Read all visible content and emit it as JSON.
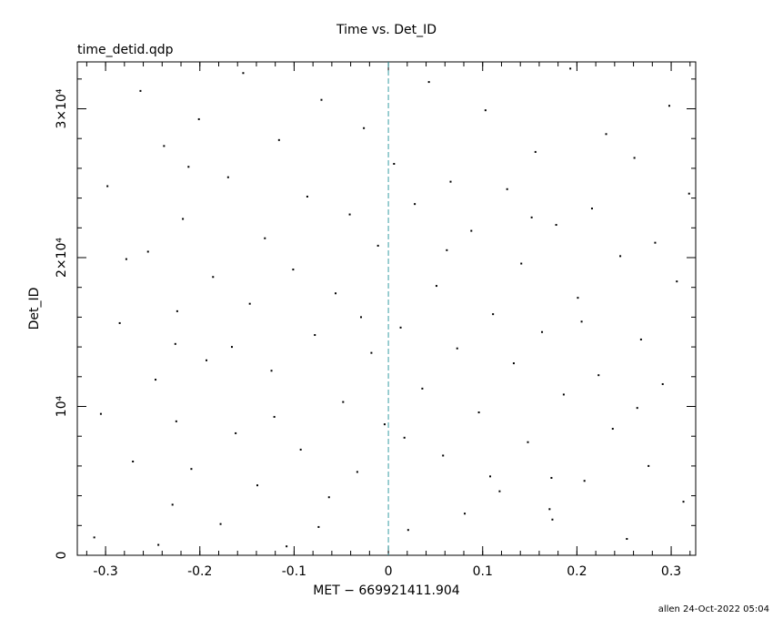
{
  "chart_data": {
    "type": "scatter",
    "title": "Time vs. Det_ID",
    "subtitle": "time_detid.qdp",
    "x_label": "MET − 669921411.904",
    "y_label": "Det_ID",
    "footer": "allen 24-Oct-2022 05:04",
    "color": "#000000",
    "reference_line": {
      "x": 0,
      "color": "#3a9ea5"
    },
    "xlim": [
      -0.33,
      0.326
    ],
    "ylim": [
      0,
      33150
    ],
    "xticks": [
      -0.3,
      -0.2,
      -0.1,
      0,
      0.1,
      0.2,
      0.3
    ],
    "yticks": [
      0,
      {
        "value": 10000,
        "label": "10⁴"
      },
      {
        "value": 20000,
        "label": "2×10⁴"
      },
      {
        "value": 30000,
        "label": "3×10⁴"
      }
    ],
    "x": [
      -0.312,
      -0.298,
      -0.285,
      -0.271,
      -0.263,
      -0.255,
      -0.247,
      -0.238,
      -0.229,
      -0.226,
      -0.225,
      -0.224,
      -0.218,
      -0.209,
      -0.201,
      -0.193,
      -0.186,
      -0.178,
      -0.17,
      -0.162,
      -0.154,
      -0.147,
      -0.139,
      -0.131,
      -0.124,
      -0.116,
      -0.108,
      -0.101,
      -0.093,
      -0.086,
      -0.078,
      -0.071,
      -0.063,
      -0.056,
      -0.048,
      -0.041,
      -0.033,
      -0.026,
      -0.018,
      -0.011,
      -0.004,
      0.006,
      0.013,
      0.021,
      0.028,
      0.036,
      0.043,
      0.051,
      0.058,
      0.066,
      0.073,
      0.081,
      0.088,
      0.096,
      0.103,
      0.111,
      0.118,
      0.126,
      0.133,
      0.141,
      0.148,
      0.156,
      0.163,
      0.171,
      0.173,
      0.174,
      0.178,
      0.186,
      0.193,
      0.201,
      0.208,
      0.216,
      0.223,
      0.231,
      0.238,
      0.246,
      0.253,
      0.261,
      0.268,
      0.276,
      0.283,
      0.291,
      0.298,
      0.306,
      0.313,
      0.319,
      -0.305,
      -0.278,
      -0.244,
      -0.212,
      -0.166,
      -0.121,
      -0.074,
      -0.029,
      0.017,
      0.062,
      0.108,
      0.152,
      0.205,
      0.264
    ],
    "values": [
      1200,
      24800,
      15600,
      6300,
      31200,
      20400,
      11800,
      27500,
      3400,
      14200,
      9000,
      16400,
      22600,
      5800,
      29300,
      13100,
      18700,
      2100,
      25400,
      8200,
      32400,
      16900,
      4700,
      21300,
      12400,
      27900,
      600,
      19200,
      7100,
      24100,
      14800,
      30600,
      3900,
      17600,
      10300,
      22900,
      5600,
      28700,
      13600,
      20800,
      8800,
      26300,
      15300,
      1700,
      23600,
      11200,
      31800,
      18100,
      6700,
      25100,
      13900,
      2800,
      21800,
      9600,
      29900,
      16200,
      4300,
      24600,
      12900,
      19600,
      7600,
      27100,
      15000,
      3100,
      5200,
      2400,
      22200,
      10800,
      32700,
      17300,
      5000,
      23300,
      12100,
      28300,
      8500,
      20100,
      1100,
      26700,
      14500,
      6000,
      21000,
      11500,
      30200,
      18400,
      3600,
      24300,
      9500,
      19900,
      700,
      26100,
      14000,
      9300,
      1900,
      16000,
      7900,
      20500,
      5300,
      22700,
      15700,
      9900
    ]
  }
}
